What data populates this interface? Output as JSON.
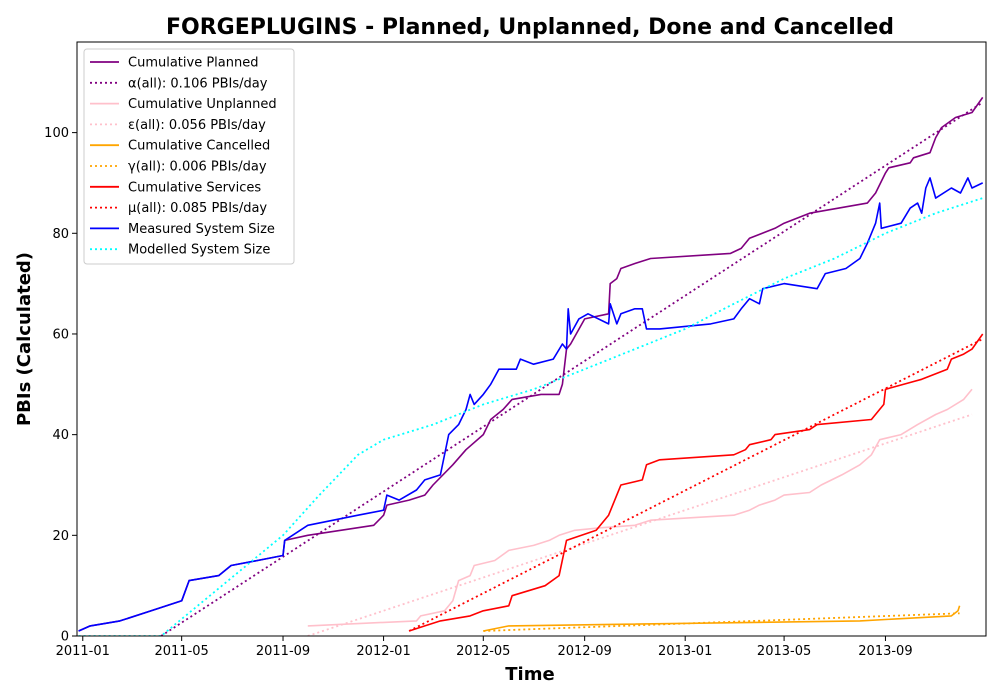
{
  "chart_data": {
    "type": "line",
    "title": "FORGEPLUGINS - Planned, Unplanned, Done  and Cancelled",
    "xlabel": "Time",
    "ylabel": "PBIs (Calculated)",
    "xlim": [
      "2010-12-25",
      "2014-01-01"
    ],
    "ylim": [
      0,
      118
    ],
    "x_ticks": [
      "2011-01",
      "2011-05",
      "2011-09",
      "2012-01",
      "2012-05",
      "2012-09",
      "2013-01",
      "2013-05",
      "2013-09"
    ],
    "y_ticks": [
      0,
      20,
      40,
      60,
      80,
      100
    ],
    "grid": false,
    "legend_position": "top-left",
    "series": [
      {
        "name": "Cumulative Planned",
        "color": "#800080",
        "style": "solid",
        "points": [
          [
            "2010-12-27",
            1
          ],
          [
            "2011-01-10",
            2
          ],
          [
            "2011-02-15",
            3
          ],
          [
            "2011-03-25",
            5
          ],
          [
            "2011-05-01",
            7
          ],
          [
            "2011-05-10",
            11
          ],
          [
            "2011-06-15",
            12
          ],
          [
            "2011-06-30",
            14
          ],
          [
            "2011-08-01",
            15
          ],
          [
            "2011-09-01",
            16
          ],
          [
            "2011-09-03",
            19
          ],
          [
            "2011-10-01",
            20
          ],
          [
            "2011-12-20",
            22
          ],
          [
            "2012-01-01",
            24
          ],
          [
            "2012-01-05",
            26
          ],
          [
            "2012-02-01",
            27
          ],
          [
            "2012-02-20",
            28
          ],
          [
            "2012-03-01",
            30
          ],
          [
            "2012-03-25",
            34
          ],
          [
            "2012-04-10",
            37
          ],
          [
            "2012-05-01",
            40
          ],
          [
            "2012-05-10",
            43
          ],
          [
            "2012-05-25",
            45
          ],
          [
            "2012-06-05",
            47
          ],
          [
            "2012-07-10",
            48
          ],
          [
            "2012-08-01",
            48
          ],
          [
            "2012-08-05",
            50
          ],
          [
            "2012-08-10",
            57
          ],
          [
            "2012-08-15",
            58
          ],
          [
            "2012-09-01",
            63
          ],
          [
            "2012-09-30",
            64
          ],
          [
            "2012-10-02",
            70
          ],
          [
            "2012-10-10",
            71
          ],
          [
            "2012-10-15",
            73
          ],
          [
            "2012-11-01",
            74
          ],
          [
            "2012-11-20",
            75
          ],
          [
            "2013-02-25",
            76
          ],
          [
            "2013-03-10",
            77
          ],
          [
            "2013-03-20",
            79
          ],
          [
            "2013-04-20",
            81
          ],
          [
            "2013-05-01",
            82
          ],
          [
            "2013-06-01",
            84
          ],
          [
            "2013-08-10",
            86
          ],
          [
            "2013-08-20",
            88
          ],
          [
            "2013-09-01",
            92
          ],
          [
            "2013-09-05",
            93
          ],
          [
            "2013-10-01",
            94
          ],
          [
            "2013-10-05",
            95
          ],
          [
            "2013-10-25",
            96
          ],
          [
            "2013-11-01",
            99
          ],
          [
            "2013-11-08",
            101
          ],
          [
            "2013-11-25",
            103
          ],
          [
            "2013-12-15",
            104
          ],
          [
            "2013-12-28",
            107
          ]
        ]
      },
      {
        "name": "α(all): 0.106 PBIs/day",
        "color": "#800080",
        "style": "dotted",
        "points": [
          [
            "2011-04-06",
            0
          ],
          [
            "2013-12-28",
            106
          ]
        ]
      },
      {
        "name": "Cumulative Unplanned",
        "color": "#ffc0cb",
        "style": "solid",
        "points": [
          [
            "2011-10-01",
            2
          ],
          [
            "2012-02-10",
            3
          ],
          [
            "2012-02-15",
            4
          ],
          [
            "2012-03-15",
            5
          ],
          [
            "2012-03-25",
            7
          ],
          [
            "2012-04-01",
            11
          ],
          [
            "2012-04-15",
            12
          ],
          [
            "2012-04-20",
            14
          ],
          [
            "2012-05-15",
            15
          ],
          [
            "2012-06-01",
            17
          ],
          [
            "2012-07-01",
            18
          ],
          [
            "2012-07-20",
            19
          ],
          [
            "2012-08-01",
            20
          ],
          [
            "2012-08-20",
            21
          ],
          [
            "2012-09-20",
            21.5
          ],
          [
            "2012-11-01",
            22
          ],
          [
            "2012-11-20",
            23
          ],
          [
            "2013-03-01",
            24
          ],
          [
            "2013-03-20",
            25
          ],
          [
            "2013-04-01",
            26
          ],
          [
            "2013-04-20",
            27
          ],
          [
            "2013-05-01",
            28
          ],
          [
            "2013-06-01",
            28.5
          ],
          [
            "2013-06-15",
            30
          ],
          [
            "2013-07-10",
            32
          ],
          [
            "2013-08-01",
            34
          ],
          [
            "2013-08-15",
            36
          ],
          [
            "2013-08-25",
            39
          ],
          [
            "2013-09-20",
            40
          ],
          [
            "2013-10-10",
            42
          ],
          [
            "2013-11-01",
            44
          ],
          [
            "2013-11-15",
            45
          ],
          [
            "2013-12-05",
            47
          ],
          [
            "2013-12-15",
            49
          ]
        ]
      },
      {
        "name": "ε(all): 0.056 PBIs/day",
        "color": "#ffc0cb",
        "style": "dotted",
        "points": [
          [
            "2011-10-01",
            0
          ],
          [
            "2013-12-15",
            44
          ]
        ]
      },
      {
        "name": "Cumulative Cancelled",
        "color": "#ffa500",
        "style": "solid",
        "points": [
          [
            "2012-05-01",
            1
          ],
          [
            "2012-06-01",
            2
          ],
          [
            "2013-08-01",
            3
          ],
          [
            "2013-11-20",
            4
          ],
          [
            "2013-11-28",
            5
          ],
          [
            "2013-11-30",
            6
          ]
        ]
      },
      {
        "name": "γ(all): 0.006 PBIs/day",
        "color": "#ffa500",
        "style": "dotted",
        "points": [
          [
            "2012-05-01",
            1
          ],
          [
            "2013-11-30",
            4.5
          ]
        ]
      },
      {
        "name": "Cumulative Services",
        "color": "#ff0000",
        "style": "solid",
        "points": [
          [
            "2012-02-01",
            1
          ],
          [
            "2012-02-20",
            2
          ],
          [
            "2012-03-10",
            3
          ],
          [
            "2012-04-15",
            4
          ],
          [
            "2012-05-01",
            5
          ],
          [
            "2012-06-01",
            6
          ],
          [
            "2012-06-05",
            8
          ],
          [
            "2012-07-15",
            10
          ],
          [
            "2012-08-01",
            12
          ],
          [
            "2012-08-10",
            19
          ],
          [
            "2012-09-15",
            21
          ],
          [
            "2012-09-30",
            24
          ],
          [
            "2012-10-10",
            28
          ],
          [
            "2012-10-15",
            30
          ],
          [
            "2012-11-10",
            31
          ],
          [
            "2012-11-15",
            34
          ],
          [
            "2012-12-01",
            35
          ],
          [
            "2013-03-01",
            36
          ],
          [
            "2013-03-15",
            37
          ],
          [
            "2013-03-20",
            38
          ],
          [
            "2013-04-15",
            39
          ],
          [
            "2013-04-20",
            40
          ],
          [
            "2013-06-01",
            41
          ],
          [
            "2013-06-10",
            42
          ],
          [
            "2013-08-15",
            43
          ],
          [
            "2013-08-30",
            46
          ],
          [
            "2013-09-01",
            49
          ],
          [
            "2013-10-15",
            51
          ],
          [
            "2013-11-15",
            53
          ],
          [
            "2013-11-20",
            55
          ],
          [
            "2013-12-05",
            56
          ],
          [
            "2013-12-15",
            57
          ],
          [
            "2013-12-28",
            60
          ]
        ]
      },
      {
        "name": "μ(all): 0.085 PBIs/day",
        "color": "#ff0000",
        "style": "dotted",
        "points": [
          [
            "2012-02-01",
            1
          ],
          [
            "2013-12-28",
            59
          ]
        ]
      },
      {
        "name": "Measured System Size",
        "color": "#0000ff",
        "style": "solid",
        "points": [
          [
            "2010-12-27",
            1
          ],
          [
            "2011-01-10",
            2
          ],
          [
            "2011-02-15",
            3
          ],
          [
            "2011-03-25",
            5
          ],
          [
            "2011-05-01",
            7
          ],
          [
            "2011-05-10",
            11
          ],
          [
            "2011-06-15",
            12
          ],
          [
            "2011-06-30",
            14
          ],
          [
            "2011-08-01",
            15
          ],
          [
            "2011-09-01",
            16
          ],
          [
            "2011-09-03",
            19
          ],
          [
            "2011-10-01",
            22
          ],
          [
            "2011-12-01",
            24
          ],
          [
            "2012-01-01",
            25
          ],
          [
            "2012-01-05",
            28
          ],
          [
            "2012-01-20",
            27
          ],
          [
            "2012-02-10",
            29
          ],
          [
            "2012-02-20",
            31
          ],
          [
            "2012-03-10",
            32
          ],
          [
            "2012-03-20",
            40
          ],
          [
            "2012-04-01",
            42
          ],
          [
            "2012-04-10",
            45
          ],
          [
            "2012-04-15",
            48
          ],
          [
            "2012-04-20",
            46
          ],
          [
            "2012-05-01",
            48
          ],
          [
            "2012-05-10",
            50
          ],
          [
            "2012-05-20",
            53
          ],
          [
            "2012-06-10",
            53
          ],
          [
            "2012-06-15",
            55
          ],
          [
            "2012-07-01",
            54
          ],
          [
            "2012-07-25",
            55
          ],
          [
            "2012-08-05",
            58
          ],
          [
            "2012-08-10",
            57
          ],
          [
            "2012-08-12",
            65
          ],
          [
            "2012-08-15",
            60
          ],
          [
            "2012-08-25",
            63
          ],
          [
            "2012-09-05",
            64
          ],
          [
            "2012-09-30",
            62
          ],
          [
            "2012-10-02",
            66
          ],
          [
            "2012-10-10",
            62
          ],
          [
            "2012-10-15",
            64
          ],
          [
            "2012-11-01",
            65
          ],
          [
            "2012-11-10",
            65
          ],
          [
            "2012-11-15",
            61
          ],
          [
            "2012-12-01",
            61
          ],
          [
            "2013-02-01",
            62
          ],
          [
            "2013-03-01",
            63
          ],
          [
            "2013-03-10",
            65
          ],
          [
            "2013-03-20",
            67
          ],
          [
            "2013-04-01",
            66
          ],
          [
            "2013-04-05",
            69
          ],
          [
            "2013-05-01",
            70
          ],
          [
            "2013-06-10",
            69
          ],
          [
            "2013-06-20",
            72
          ],
          [
            "2013-07-15",
            73
          ],
          [
            "2013-08-01",
            75
          ],
          [
            "2013-08-10",
            78
          ],
          [
            "2013-08-20",
            82
          ],
          [
            "2013-08-25",
            86
          ],
          [
            "2013-08-27",
            81
          ],
          [
            "2013-09-20",
            82
          ],
          [
            "2013-10-01",
            85
          ],
          [
            "2013-10-10",
            86
          ],
          [
            "2013-10-15",
            84
          ],
          [
            "2013-10-20",
            89
          ],
          [
            "2013-10-25",
            91
          ],
          [
            "2013-11-01",
            87
          ],
          [
            "2013-11-20",
            89
          ],
          [
            "2013-12-01",
            88
          ],
          [
            "2013-12-10",
            91
          ],
          [
            "2013-12-15",
            89
          ],
          [
            "2013-12-28",
            90
          ]
        ]
      },
      {
        "name": "Modelled System Size",
        "color": "#00ffff",
        "style": "dotted",
        "points": [
          [
            "2010-12-27",
            0
          ],
          [
            "2011-04-06",
            0
          ],
          [
            "2011-09-01",
            20
          ],
          [
            "2011-10-15",
            28
          ],
          [
            "2011-12-01",
            36
          ],
          [
            "2012-01-01",
            39
          ],
          [
            "2012-03-01",
            42
          ],
          [
            "2012-05-01",
            46
          ],
          [
            "2012-07-01",
            49
          ],
          [
            "2012-09-01",
            53
          ],
          [
            "2012-11-01",
            57
          ],
          [
            "2013-01-01",
            61
          ],
          [
            "2013-03-01",
            66
          ],
          [
            "2013-05-01",
            71
          ],
          [
            "2013-07-01",
            75
          ],
          [
            "2013-09-01",
            80
          ],
          [
            "2013-11-01",
            84
          ],
          [
            "2013-12-28",
            87
          ]
        ]
      }
    ]
  }
}
